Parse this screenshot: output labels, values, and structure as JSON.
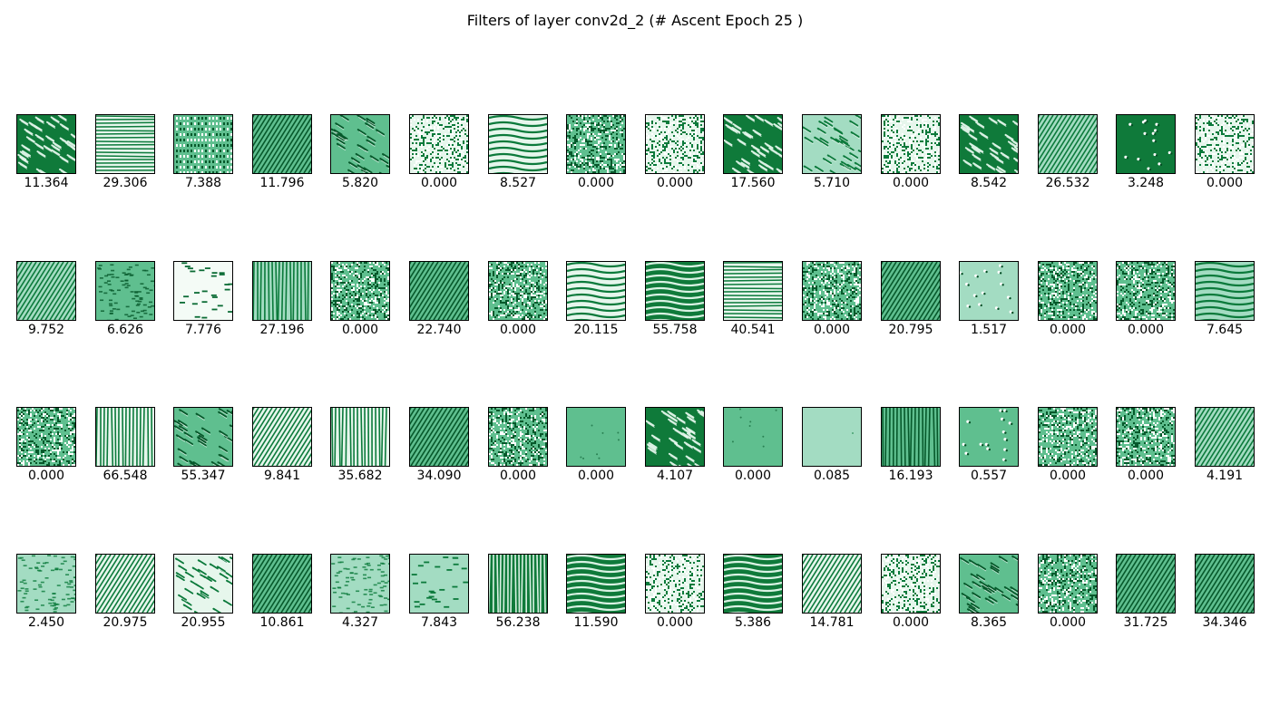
{
  "title": "Filters of layer conv2d_2 (# Ascent Epoch 25 )",
  "colormap": [
    "#f7fcf5",
    "#c7e9c0",
    "#74c476",
    "#31a354",
    "#006d2c"
  ],
  "filters": [
    {
      "value": "11.364",
      "pattern": "streaks-diag",
      "shade": "dark"
    },
    {
      "value": "29.306",
      "pattern": "stripes-h",
      "shade": "light"
    },
    {
      "value": "7.388",
      "pattern": "grid",
      "shade": "mid"
    },
    {
      "value": "11.796",
      "pattern": "stripes-diag",
      "shade": "mid"
    },
    {
      "value": "5.820",
      "pattern": "streaks-diag",
      "shade": "mid"
    },
    {
      "value": "0.000",
      "pattern": "noise",
      "shade": "light"
    },
    {
      "value": "8.527",
      "pattern": "waves-h",
      "shade": "light"
    },
    {
      "value": "0.000",
      "pattern": "noise",
      "shade": "mid"
    },
    {
      "value": "0.000",
      "pattern": "noise",
      "shade": "light"
    },
    {
      "value": "17.560",
      "pattern": "streaks-diag",
      "shade": "dark"
    },
    {
      "value": "5.710",
      "pattern": "streaks-diag",
      "shade": "pale"
    },
    {
      "value": "0.000",
      "pattern": "noise",
      "shade": "light"
    },
    {
      "value": "8.542",
      "pattern": "streaks-diag",
      "shade": "dark"
    },
    {
      "value": "26.532",
      "pattern": "stripes-diag",
      "shade": "pale"
    },
    {
      "value": "3.248",
      "pattern": "sparse",
      "shade": "dark"
    },
    {
      "value": "0.000",
      "pattern": "noise",
      "shade": "light"
    },
    {
      "value": "9.752",
      "pattern": "stripes-diag",
      "shade": "pale"
    },
    {
      "value": "6.626",
      "pattern": "speckle",
      "shade": "mid"
    },
    {
      "value": "7.776",
      "pattern": "dashes",
      "shade": "white"
    },
    {
      "value": "27.196",
      "pattern": "stripes-v",
      "shade": "pale"
    },
    {
      "value": "0.000",
      "pattern": "noise",
      "shade": "mid"
    },
    {
      "value": "22.740",
      "pattern": "stripes-diag",
      "shade": "mid"
    },
    {
      "value": "0.000",
      "pattern": "noise",
      "shade": "mid"
    },
    {
      "value": "20.115",
      "pattern": "waves-h",
      "shade": "light"
    },
    {
      "value": "55.758",
      "pattern": "waves-h",
      "shade": "dark"
    },
    {
      "value": "40.541",
      "pattern": "stripes-h",
      "shade": "light"
    },
    {
      "value": "0.000",
      "pattern": "noise",
      "shade": "mid"
    },
    {
      "value": "20.795",
      "pattern": "stripes-diag",
      "shade": "mid"
    },
    {
      "value": "1.517",
      "pattern": "sparse",
      "shade": "pale"
    },
    {
      "value": "0.000",
      "pattern": "noise",
      "shade": "mid"
    },
    {
      "value": "0.000",
      "pattern": "noise",
      "shade": "mid"
    },
    {
      "value": "7.645",
      "pattern": "waves-h",
      "shade": "pale"
    },
    {
      "value": "0.000",
      "pattern": "noise",
      "shade": "mid"
    },
    {
      "value": "66.548",
      "pattern": "stripes-v",
      "shade": "light"
    },
    {
      "value": "55.347",
      "pattern": "streaks-diag",
      "shade": "mid"
    },
    {
      "value": "9.841",
      "pattern": "stripes-diag",
      "shade": "light"
    },
    {
      "value": "35.682",
      "pattern": "stripes-v",
      "shade": "light"
    },
    {
      "value": "34.090",
      "pattern": "stripes-diag",
      "shade": "mid"
    },
    {
      "value": "0.000",
      "pattern": "noise",
      "shade": "mid"
    },
    {
      "value": "0.000",
      "pattern": "flat-dots",
      "shade": "mid"
    },
    {
      "value": "4.107",
      "pattern": "streaks-diag",
      "shade": "dark"
    },
    {
      "value": "0.000",
      "pattern": "flat-dots",
      "shade": "mid"
    },
    {
      "value": "0.085",
      "pattern": "flat",
      "shade": "pale"
    },
    {
      "value": "16.193",
      "pattern": "stripes-v",
      "shade": "mid"
    },
    {
      "value": "0.557",
      "pattern": "sparse",
      "shade": "mid"
    },
    {
      "value": "0.000",
      "pattern": "noise",
      "shade": "mid"
    },
    {
      "value": "0.000",
      "pattern": "noise",
      "shade": "mid"
    },
    {
      "value": "4.191",
      "pattern": "stripes-diag",
      "shade": "pale"
    },
    {
      "value": "2.450",
      "pattern": "speckle",
      "shade": "pale"
    },
    {
      "value": "20.975",
      "pattern": "stripes-diag",
      "shade": "light"
    },
    {
      "value": "20.955",
      "pattern": "streaks-diag",
      "shade": "light"
    },
    {
      "value": "10.861",
      "pattern": "stripes-diag",
      "shade": "mid"
    },
    {
      "value": "4.327",
      "pattern": "speckle",
      "shade": "pale"
    },
    {
      "value": "7.843",
      "pattern": "dashes",
      "shade": "pale"
    },
    {
      "value": "56.238",
      "pattern": "stripes-v",
      "shade": "dark"
    },
    {
      "value": "11.590",
      "pattern": "waves-h",
      "shade": "dark"
    },
    {
      "value": "0.000",
      "pattern": "noise",
      "shade": "light"
    },
    {
      "value": "5.386",
      "pattern": "waves-h",
      "shade": "dark"
    },
    {
      "value": "14.781",
      "pattern": "stripes-diag",
      "shade": "light"
    },
    {
      "value": "0.000",
      "pattern": "noise",
      "shade": "light"
    },
    {
      "value": "8.365",
      "pattern": "streaks-diag",
      "shade": "mid"
    },
    {
      "value": "0.000",
      "pattern": "noise",
      "shade": "mid"
    },
    {
      "value": "31.725",
      "pattern": "stripes-diag",
      "shade": "mid"
    },
    {
      "value": "34.346",
      "pattern": "stripes-diag",
      "shade": "mid"
    }
  ]
}
